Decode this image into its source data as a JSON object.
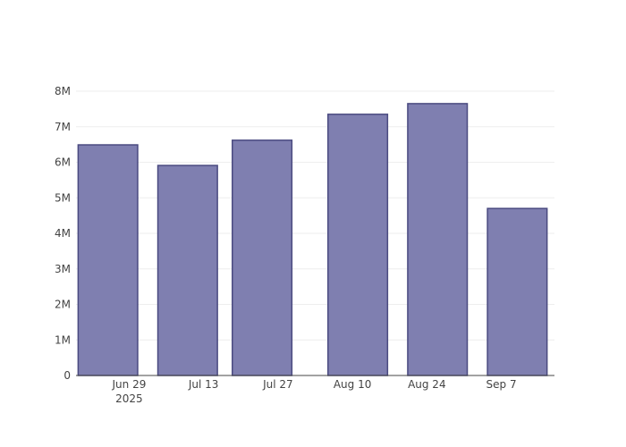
{
  "chart_data": {
    "type": "bar",
    "x": [
      "2025-06-25",
      "2025-07-10",
      "2025-07-24",
      "2025-08-11",
      "2025-08-26",
      "2025-09-10"
    ],
    "values": [
      6490000,
      5910000,
      6620000,
      7350000,
      7650000,
      4700000
    ],
    "color": "#7f7fb0",
    "edge_color": "#4a4a80",
    "xlim": [
      "2025-06-19",
      "2025-09-17"
    ],
    "xticks": [
      {
        "value": "2025-06-29",
        "label": "Jun 29\n2025"
      },
      {
        "value": "2025-07-13",
        "label": "Jul 13"
      },
      {
        "value": "2025-07-27",
        "label": "Jul 27"
      },
      {
        "value": "2025-08-10",
        "label": "Aug 10"
      },
      {
        "value": "2025-08-24",
        "label": "Aug 24"
      },
      {
        "value": "2025-09-07",
        "label": "Sep 7"
      }
    ],
    "ylim": [
      0,
      8000000
    ],
    "yticks": [
      0,
      {
        "value": 1000000,
        "label": "1M"
      },
      {
        "value": 2000000,
        "label": "2M"
      },
      {
        "value": 3000000,
        "label": "3M"
      },
      {
        "value": 4000000,
        "label": "4M"
      },
      {
        "value": 5000000,
        "label": "5M"
      },
      {
        "value": 6000000,
        "label": "6M"
      },
      {
        "value": 7000000,
        "label": "7M"
      },
      {
        "value": 8000000,
        "label": "8M"
      }
    ],
    "grid": true
  }
}
